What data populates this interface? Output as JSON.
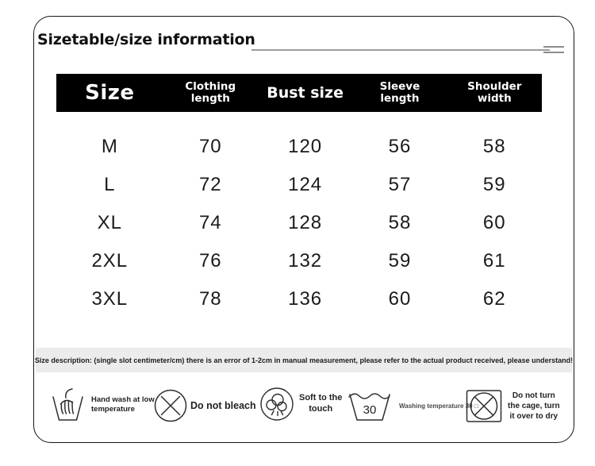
{
  "header": {
    "title": "Sizetable/size information"
  },
  "table": {
    "columns": [
      "Size",
      "Clothing\nlength",
      "Bust size",
      "Sleeve\nlength",
      "Shoulder\nwidth"
    ],
    "rows": [
      {
        "size": "M",
        "clothing_length": "70",
        "bust_size": "120",
        "sleeve_length": "56",
        "shoulder_width": "58"
      },
      {
        "size": "L",
        "clothing_length": "72",
        "bust_size": "124",
        "sleeve_length": "57",
        "shoulder_width": "59"
      },
      {
        "size": "XL",
        "clothing_length": "74",
        "bust_size": "128",
        "sleeve_length": "58",
        "shoulder_width": "60"
      },
      {
        "size": "2XL",
        "clothing_length": "76",
        "bust_size": "132",
        "sleeve_length": "59",
        "shoulder_width": "61"
      },
      {
        "size": "3XL",
        "clothing_length": "78",
        "bust_size": "136",
        "sleeve_length": "60",
        "shoulder_width": "62"
      }
    ]
  },
  "description": "Size description: (single slot centimeter/cm) there is an error of 1-2cm in manual measurement, please refer to the actual product received, please understand!",
  "care": {
    "items": [
      {
        "icon": "hand-wash-icon",
        "label": "Hand wash at low\ntemperature"
      },
      {
        "icon": "do-not-bleach-icon",
        "label": "Do not bleach"
      },
      {
        "icon": "soft-touch-icon",
        "label": "Soft to the\ntouch"
      },
      {
        "icon": "wash-30-icon",
        "label": "Washing temperature 30 □",
        "temperature_value": "30"
      },
      {
        "icon": "no-tumble-dry-icon",
        "label": "Do not turn\nthe cage, turn\nit over to dry"
      }
    ]
  },
  "colors": {
    "header_bar": "#000000",
    "header_text": "#ffffff",
    "card_border": "#161616",
    "description_band": "#ececec",
    "body_text": "#1b1b1b",
    "icon_stroke": "#2e2e2e"
  }
}
